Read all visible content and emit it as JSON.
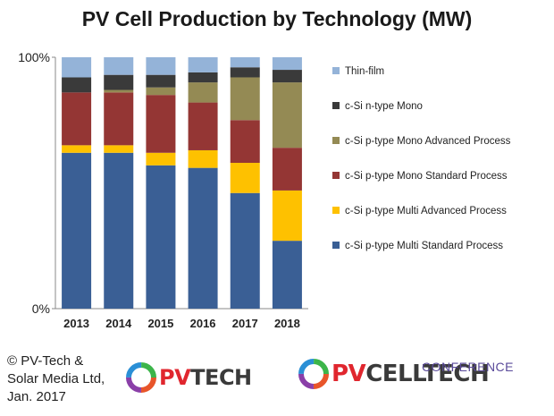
{
  "chart_data": {
    "type": "bar",
    "stacked": true,
    "percent": true,
    "title": "PV Cell Production by Technology (MW)",
    "categories": [
      "2013",
      "2014",
      "2015",
      "2016",
      "2017",
      "2018"
    ],
    "y_ticks": [
      "100%",
      "0%"
    ],
    "ylim": [
      0,
      100
    ],
    "legend_position": "right",
    "series": [
      {
        "name": "c-Si p-type Multi Standard Process",
        "color": "#3a5f95",
        "values": [
          62,
          62,
          57,
          56,
          46,
          27
        ]
      },
      {
        "name": "c-Si p-type Multi Advanced Process",
        "color": "#fec100",
        "values": [
          3,
          3,
          5,
          7,
          12,
          20
        ]
      },
      {
        "name": "c-Si p-type Mono Standard Process",
        "color": "#943634",
        "values": [
          21,
          21,
          23,
          19,
          17,
          17
        ]
      },
      {
        "name": "c-Si p-type Mono Advanced Process",
        "color": "#948a54",
        "values": [
          0,
          1,
          3,
          8,
          17,
          26
        ]
      },
      {
        "name": "c-Si n-type Mono",
        "color": "#3a3a3a",
        "values": [
          6,
          6,
          5,
          4,
          4,
          5
        ]
      },
      {
        "name": "Thin-film",
        "color": "#94b3d8",
        "values": [
          8,
          7,
          7,
          6,
          4,
          5
        ]
      }
    ]
  },
  "credit": {
    "line1": "© PV-Tech &",
    "line2": "Solar Media Ltd,",
    "line3": "Jan. 2017"
  },
  "logos": {
    "pvtech": {
      "pv": "PV",
      "rest": "TECH"
    },
    "pvcelltech": {
      "pv": "PV",
      "rest": "CELLTECH",
      "label": "CONFERENCE"
    }
  }
}
